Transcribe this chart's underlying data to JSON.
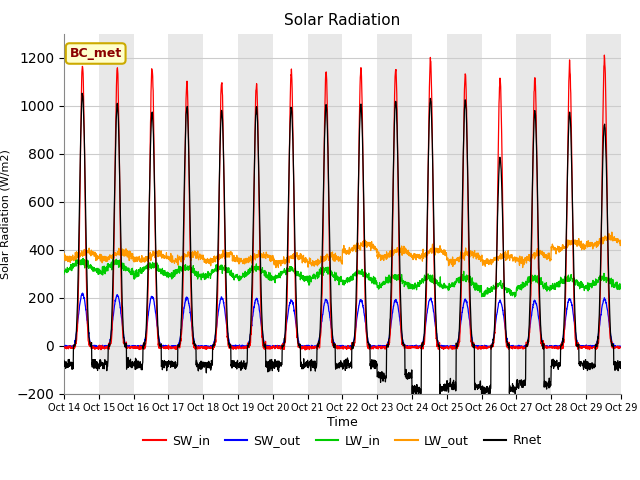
{
  "title": "Solar Radiation",
  "ylabel": "Solar Radiation (W/m2)",
  "xlabel": "Time",
  "ylim": [
    -200,
    1300
  ],
  "yticks": [
    -200,
    0,
    200,
    400,
    600,
    800,
    1000,
    1200
  ],
  "num_days": 16,
  "x_tick_labels": [
    "Oct 14",
    "Oct 15",
    "Oct 16",
    "Oct 17",
    "Oct 18",
    "Oct 19",
    "Oct 20",
    "Oct 21",
    "Oct 22",
    "Oct 23",
    "Oct 24",
    "Oct 25",
    "Oct 26",
    "Oct 27",
    "Oct 28",
    "Oct 29"
  ],
  "last_tick": "Oct 29",
  "annotation_text": "BC_met",
  "colors": {
    "SW_in": "#ff0000",
    "SW_out": "#0000ff",
    "LW_in": "#00cc00",
    "LW_out": "#ff9900",
    "Rnet": "#000000"
  },
  "background_color": "#ffffff",
  "band_color": "#e8e8e8",
  "sw_in_peak": [
    1170,
    1160,
    1160,
    1100,
    1100,
    1095,
    1140,
    1140,
    1155,
    1155,
    1195,
    1135,
    1110,
    1110,
    1170,
    1195
  ],
  "sw_out_peak": [
    215,
    210,
    205,
    200,
    200,
    195,
    190,
    190,
    190,
    190,
    195,
    190,
    185,
    185,
    195,
    195
  ],
  "lw_in_base": [
    330,
    325,
    315,
    308,
    305,
    302,
    298,
    295,
    285,
    268,
    263,
    262,
    232,
    258,
    263,
    263
  ],
  "lw_out_base": [
    375,
    375,
    370,
    368,
    365,
    365,
    360,
    358,
    410,
    385,
    385,
    368,
    362,
    368,
    415,
    435
  ],
  "rnet_peak": [
    1050,
    1005,
    970,
    998,
    978,
    993,
    993,
    1003,
    1003,
    1023,
    1028,
    1023,
    783,
    973,
    968,
    923
  ],
  "rnet_night_min": [
    -80,
    -75,
    -80,
    -80,
    -80,
    -80,
    -80,
    -80,
    -78,
    -128,
    -182,
    -168,
    -182,
    -158,
    -78,
    -82
  ],
  "sw_in_night": -10,
  "pts_per_day": 144
}
